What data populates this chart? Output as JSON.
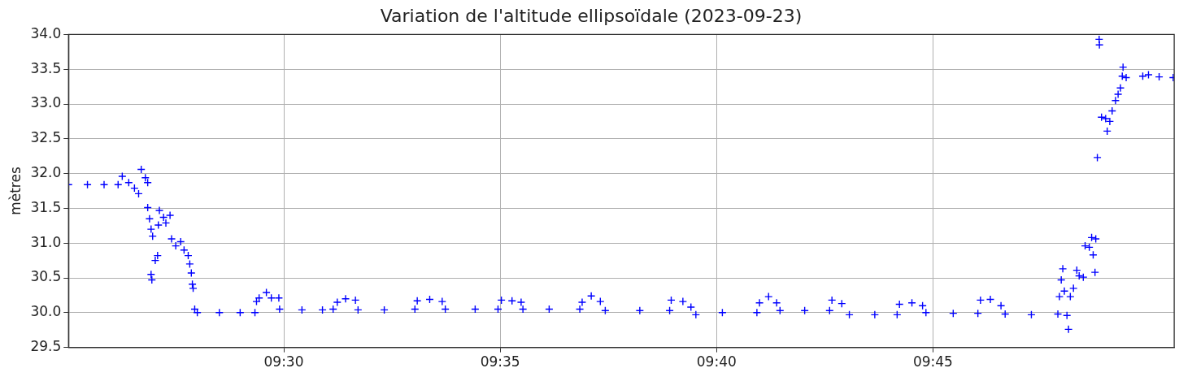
{
  "chart_data": {
    "type": "scatter",
    "title": "Variation de l'altitude ellipsoïdale (2023-09-23)",
    "ylabel": "mètres",
    "xlim": [
      9.4171,
      9.8429
    ],
    "ylim": [
      29.5,
      34.0
    ],
    "xticks": [
      {
        "value": 9.5,
        "label": "09:30"
      },
      {
        "value": 9.58333,
        "label": "09:35"
      },
      {
        "value": 9.66667,
        "label": "09:40"
      },
      {
        "value": 9.75,
        "label": "09:45"
      }
    ],
    "yticks": [
      29.5,
      {
        "value": 30,
        "label": "30.0"
      },
      30.5,
      {
        "value": 31,
        "label": "31.0"
      },
      31.5,
      {
        "value": 32,
        "label": "32.0"
      },
      32.5,
      {
        "value": 33,
        "label": "33.0"
      },
      33.5,
      {
        "value": 34,
        "label": "34.0"
      }
    ],
    "grid": true,
    "marker": "cross",
    "series": [
      {
        "color": "#0000ff",
        "x": [
          9.4171,
          9.4244,
          9.4308,
          9.4362,
          9.4378,
          9.4403,
          9.4425,
          9.4441,
          9.4451,
          9.4467,
          9.4476,
          9.4476,
          9.4483,
          9.4489,
          9.4489,
          9.4492,
          9.4495,
          9.4505,
          9.4514,
          9.4517,
          9.4521,
          9.4537,
          9.4546,
          9.4562,
          9.4568,
          9.4584,
          9.4603,
          9.4616,
          9.4632,
          9.4638,
          9.4644,
          9.4648,
          9.4651,
          9.4657,
          9.4667,
          9.4752,
          9.4832,
          9.4889,
          9.4895,
          9.4905,
          9.4933,
          9.4952,
          9.4981,
          9.4984,
          9.507,
          9.5149,
          9.519,
          9.5206,
          9.5238,
          9.5276,
          9.5286,
          9.5387,
          9.5505,
          9.5514,
          9.5562,
          9.561,
          9.5622,
          9.5737,
          9.5825,
          9.5838,
          9.5879,
          9.5914,
          9.5921,
          9.6022,
          9.614,
          9.6149,
          9.6184,
          9.6219,
          9.6238,
          9.6371,
          9.6486,
          9.6492,
          9.6537,
          9.6568,
          9.6587,
          9.6689,
          9.6822,
          9.6832,
          9.6867,
          9.6898,
          9.6911,
          9.7006,
          9.7102,
          9.7111,
          9.7149,
          9.7178,
          9.7276,
          9.7362,
          9.7371,
          9.7419,
          9.746,
          9.7473,
          9.7578,
          9.7673,
          9.7683,
          9.7721,
          9.7762,
          9.7778,
          9.7879,
          9.7981,
          9.7987,
          9.7994,
          9.8,
          9.8006,
          9.8016,
          9.8022,
          9.8029,
          9.8041,
          9.8054,
          9.8063,
          9.8079,
          9.8086,
          9.8102,
          9.8111,
          9.8117,
          9.8124,
          9.8127,
          9.8133,
          9.814,
          9.8141,
          9.8149,
          9.8165,
          9.8171,
          9.8181,
          9.819,
          9.8203,
          9.8213,
          9.8222,
          9.8229,
          9.8232,
          9.8244,
          9.8308,
          9.833,
          9.8371,
          9.8425
        ],
        "values": [
          31.84,
          31.84,
          31.84,
          31.84,
          31.96,
          31.87,
          31.79,
          31.71,
          32.06,
          31.94,
          31.87,
          31.51,
          31.35,
          31.2,
          30.55,
          30.47,
          31.1,
          30.75,
          30.82,
          31.26,
          31.47,
          31.37,
          31.29,
          31.4,
          31.06,
          30.96,
          31.02,
          30.9,
          30.82,
          30.7,
          30.57,
          30.41,
          30.35,
          30.05,
          30.0,
          30.0,
          30.0,
          30.0,
          30.16,
          30.21,
          30.29,
          30.21,
          30.21,
          30.05,
          30.04,
          30.04,
          30.05,
          30.15,
          30.2,
          30.18,
          30.04,
          30.04,
          30.05,
          30.17,
          30.19,
          30.16,
          30.05,
          30.05,
          30.05,
          30.18,
          30.17,
          30.15,
          30.05,
          30.05,
          30.05,
          30.15,
          30.24,
          30.16,
          30.03,
          30.03,
          30.03,
          30.18,
          30.16,
          30.08,
          29.97,
          30.0,
          30.0,
          30.14,
          30.23,
          30.14,
          30.03,
          30.03,
          30.03,
          30.18,
          30.13,
          29.97,
          29.97,
          29.97,
          30.12,
          30.14,
          30.1,
          30.0,
          29.99,
          29.99,
          30.18,
          30.19,
          30.1,
          29.98,
          29.97,
          29.98,
          30.23,
          30.47,
          30.63,
          30.31,
          29.96,
          29.76,
          30.23,
          30.35,
          30.61,
          30.53,
          30.51,
          30.96,
          30.94,
          31.08,
          30.83,
          30.58,
          31.06,
          32.23,
          33.93,
          33.85,
          32.81,
          32.79,
          32.61,
          32.75,
          32.9,
          33.05,
          33.14,
          33.23,
          33.4,
          33.53,
          33.38,
          33.4,
          33.42,
          33.39,
          33.38
        ]
      }
    ]
  }
}
